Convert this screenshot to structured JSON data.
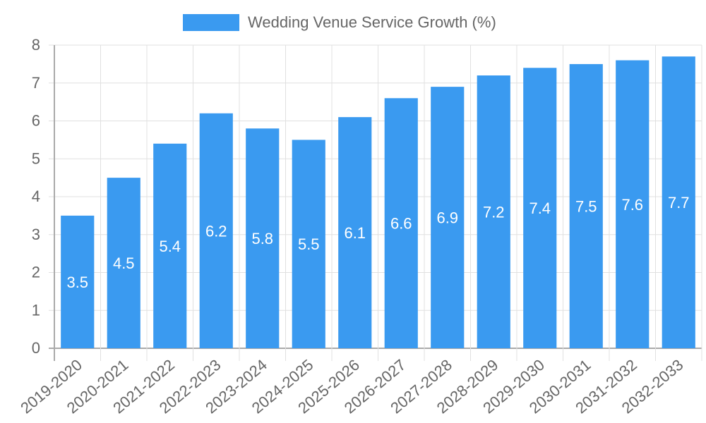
{
  "chart_data": {
    "type": "bar",
    "title": "",
    "legend": [
      {
        "label": "Wedding Venue Service Growth (%)",
        "color": "#3a9af0"
      }
    ],
    "legend_position": "top",
    "categories": [
      "2019-2020",
      "2020-2021",
      "2021-2022",
      "2022-2023",
      "2023-2024",
      "2024-2025",
      "2025-2026",
      "2026-2027",
      "2027-2028",
      "2028-2029",
      "2029-2030",
      "2030-2031",
      "2031-2032",
      "2032-2033"
    ],
    "series": [
      {
        "name": "Wedding Venue Service Growth (%)",
        "values": [
          3.5,
          4.5,
          5.4,
          6.2,
          5.8,
          5.5,
          6.1,
          6.6,
          6.9,
          7.2,
          7.4,
          7.5,
          7.6,
          7.7
        ],
        "color": "#3a9af0"
      }
    ],
    "xlabel": "",
    "ylabel": "",
    "ylim": [
      0,
      8
    ],
    "yticks": [
      0,
      1,
      2,
      3,
      4,
      5,
      6,
      7,
      8
    ],
    "grid": true,
    "data_labels": true
  }
}
